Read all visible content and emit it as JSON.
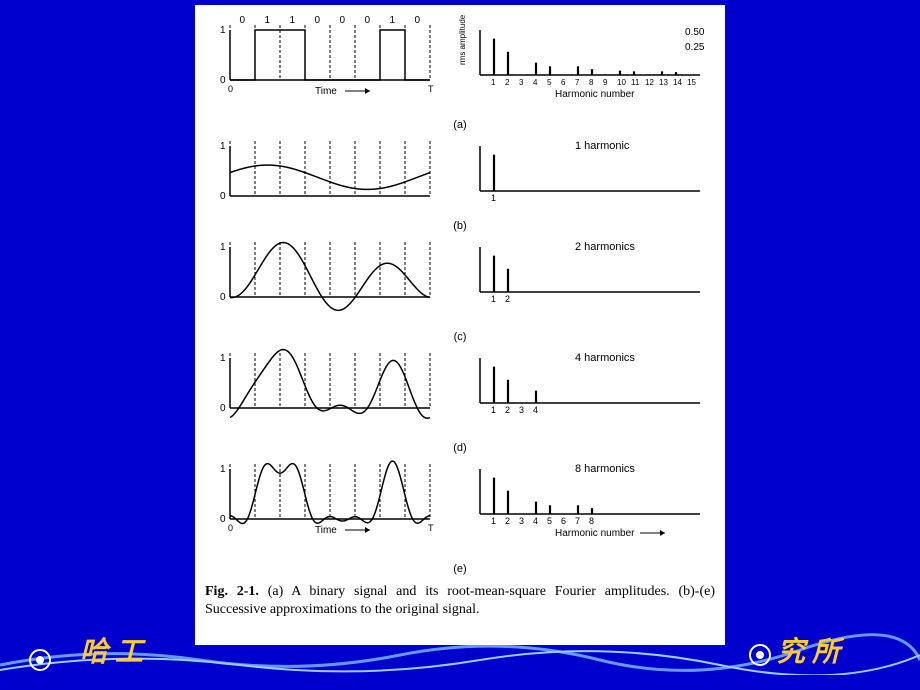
{
  "figure": {
    "bits": [
      "0",
      "1",
      "1",
      "0",
      "0",
      "0",
      "1",
      "0"
    ],
    "signal_levels": [
      0,
      1,
      1,
      0,
      0,
      0,
      1,
      0
    ],
    "time_label": "Time",
    "time_end": "T",
    "rms_label": "rms amplitude",
    "harmonic_label": "Harmonic number",
    "harmonic_ticks": [
      "1",
      "2",
      "3",
      "4",
      "5",
      "6",
      "7",
      "8",
      "9",
      "10",
      "11",
      "12",
      "13",
      "14",
      "15"
    ],
    "scale_labels": [
      "0.50",
      "0.25"
    ],
    "rms_amplitudes": [
      0.5,
      0.32,
      0.0,
      0.17,
      0.12,
      0.0,
      0.12,
      0.08,
      0.0,
      0.06,
      0.05,
      0.0,
      0.05,
      0.04,
      0.0
    ],
    "rows": [
      {
        "id": "a",
        "label": "(a)"
      },
      {
        "id": "b",
        "label": "(b)",
        "harmonic_text": "1 harmonic",
        "harmonics": [
          1
        ],
        "wave_n": 1
      },
      {
        "id": "c",
        "label": "(c)",
        "harmonic_text": "2 harmonics",
        "harmonics": [
          1,
          2
        ],
        "wave_n": 2
      },
      {
        "id": "d",
        "label": "(d)",
        "harmonic_text": "4 harmonics",
        "harmonics": [
          1,
          2,
          3,
          4
        ],
        "wave_n": 4
      },
      {
        "id": "e",
        "label": "(e)",
        "harmonic_text": "8 harmonics",
        "harmonics": [
          1,
          2,
          3,
          4,
          5,
          6,
          7,
          8
        ],
        "wave_n": 8
      }
    ],
    "caption_bold": "Fig. 2-1.",
    "caption_text": " (a) A binary signal and its root-mean-square Fourier amplitudes.  (b)-(e) Successive approximations to the original signal."
  },
  "footer": {
    "left": "哈 工",
    "right": "究 所"
  },
  "colors": {
    "bg": "#0000cc",
    "panel": "#ffffff",
    "stroke": "#000000",
    "footer_text": "#ffcc33"
  }
}
